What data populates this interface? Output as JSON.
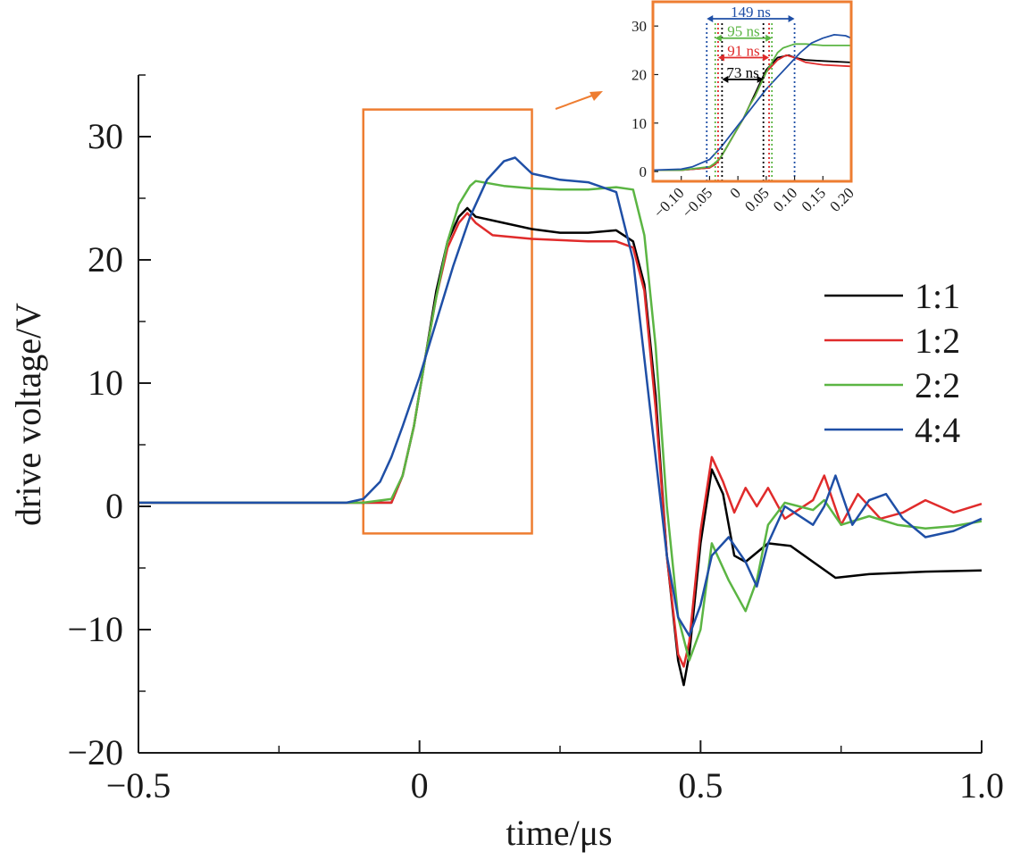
{
  "chart_data": [
    {
      "type": "line",
      "xlabel": "time/μs",
      "ylabel": "drive voltage/V",
      "xlim": [
        -0.5,
        1.0
      ],
      "ylim": [
        -20,
        35
      ],
      "xticks": [
        -0.5,
        0,
        0.5,
        1.0
      ],
      "xtick_labels": [
        "−0.5",
        "0",
        "0.5",
        "1.0"
      ],
      "yticks": [
        -20,
        -10,
        0,
        10,
        20,
        30
      ],
      "ytick_labels": [
        "−20",
        "−10",
        "0",
        "10",
        "20",
        "30"
      ],
      "grid": false,
      "legend_position": "right",
      "zoom_box": {
        "x0": -0.1,
        "x1": 0.2,
        "y0": -2.2,
        "y1": 32.2
      },
      "series": [
        {
          "name": "1:1",
          "color": "#000000",
          "x": [
            -0.5,
            -0.1,
            -0.05,
            -0.03,
            -0.01,
            0.01,
            0.03,
            0.05,
            0.07,
            0.085,
            0.1,
            0.15,
            0.2,
            0.25,
            0.3,
            0.35,
            0.38,
            0.4,
            0.42,
            0.44,
            0.46,
            0.47,
            0.48,
            0.5,
            0.52,
            0.54,
            0.56,
            0.58,
            0.62,
            0.66,
            0.7,
            0.74,
            0.8,
            0.9,
            1.0
          ],
          "y": [
            0.3,
            0.3,
            0.3,
            2.5,
            6.5,
            12,
            17.5,
            21.5,
            23.5,
            24.2,
            23.5,
            23,
            22.5,
            22.2,
            22.2,
            22.4,
            21.5,
            18,
            9,
            -4,
            -12.5,
            -14.5,
            -12,
            -3,
            3,
            1,
            -4,
            -4.5,
            -3,
            -3.2,
            -4.5,
            -5.8,
            -5.5,
            -5.3,
            -5.2
          ]
        },
        {
          "name": "1:2",
          "color": "#e02b2b",
          "x": [
            -0.5,
            -0.1,
            -0.05,
            -0.03,
            -0.01,
            0.01,
            0.03,
            0.05,
            0.07,
            0.085,
            0.1,
            0.13,
            0.2,
            0.25,
            0.3,
            0.35,
            0.38,
            0.4,
            0.42,
            0.44,
            0.46,
            0.47,
            0.48,
            0.5,
            0.52,
            0.54,
            0.56,
            0.58,
            0.6,
            0.62,
            0.65,
            0.7,
            0.72,
            0.75,
            0.78,
            0.82,
            0.86,
            0.9,
            0.95,
            1.0
          ],
          "y": [
            0.3,
            0.3,
            0.3,
            2.5,
            6.5,
            12,
            17,
            21,
            23,
            23.8,
            23,
            22,
            21.7,
            21.6,
            21.5,
            21.5,
            21,
            17.5,
            8,
            -4,
            -12,
            -13,
            -11,
            -2,
            4,
            2,
            -0.5,
            1.5,
            0,
            1.5,
            -1,
            0.5,
            2.5,
            -1.5,
            1,
            -1,
            -0.5,
            0.5,
            -0.5,
            0.2
          ]
        },
        {
          "name": "2:2",
          "color": "#5bb543",
          "x": [
            -0.5,
            -0.1,
            -0.05,
            -0.03,
            -0.01,
            0.01,
            0.03,
            0.05,
            0.07,
            0.09,
            0.1,
            0.15,
            0.2,
            0.25,
            0.3,
            0.35,
            0.38,
            0.4,
            0.42,
            0.44,
            0.46,
            0.48,
            0.5,
            0.52,
            0.55,
            0.58,
            0.6,
            0.62,
            0.65,
            0.7,
            0.72,
            0.75,
            0.8,
            0.85,
            0.9,
            0.95,
            1.0
          ],
          "y": [
            0.3,
            0.3,
            0.6,
            2.5,
            6.5,
            12,
            17,
            21.5,
            24.5,
            26,
            26.4,
            26,
            25.8,
            25.7,
            25.7,
            25.9,
            25.7,
            22,
            13,
            0,
            -9,
            -12.5,
            -10,
            -3,
            -6,
            -8.5,
            -6,
            -1.5,
            0.3,
            -0.3,
            0.5,
            -1.5,
            -0.8,
            -1.5,
            -1.8,
            -1.6,
            -1.2
          ]
        },
        {
          "name": "4:4",
          "color": "#1f4fa6",
          "x": [
            -0.5,
            -0.13,
            -0.1,
            -0.07,
            -0.05,
            -0.03,
            0,
            0.03,
            0.06,
            0.09,
            0.12,
            0.15,
            0.17,
            0.2,
            0.25,
            0.3,
            0.35,
            0.38,
            0.4,
            0.42,
            0.44,
            0.46,
            0.48,
            0.5,
            0.52,
            0.55,
            0.58,
            0.6,
            0.62,
            0.65,
            0.7,
            0.72,
            0.74,
            0.77,
            0.8,
            0.83,
            0.86,
            0.9,
            0.95,
            1.0
          ],
          "y": [
            0.3,
            0.3,
            0.6,
            2,
            4,
            6.5,
            10.5,
            15,
            19.5,
            23.5,
            26.5,
            28,
            28.3,
            27,
            26.5,
            26.3,
            25.5,
            20,
            12,
            4,
            -4,
            -9,
            -10.5,
            -8,
            -4,
            -2.5,
            -4.5,
            -6.5,
            -3,
            0,
            -1.5,
            0,
            2.5,
            -1.5,
            0.5,
            1,
            -1,
            -2.5,
            -2,
            -1
          ]
        }
      ]
    },
    {
      "type": "line",
      "xlim": [
        -0.15,
        0.2
      ],
      "ylim": [
        -2,
        35
      ],
      "xticks": [
        -0.1,
        -0.05,
        0,
        0.05,
        0.1,
        0.15,
        0.2
      ],
      "xtick_labels": [
        "−0.10",
        "−0.05",
        "0",
        "0.05",
        "0.10",
        "0.15",
        "0.20"
      ],
      "yticks": [
        0,
        10,
        20,
        30
      ],
      "ytick_labels": [
        "0",
        "10",
        "20",
        "30"
      ],
      "grid": false,
      "frame_color": "#ee7d31",
      "annotations": [
        {
          "text": "149 ns",
          "color": "#1f4fa6",
          "x_start": -0.055,
          "x_end": 0.1,
          "y": 31.5
        },
        {
          "text": "95 ns",
          "color": "#5bb543",
          "x_start": -0.04,
          "x_end": 0.06,
          "y": 27.5
        },
        {
          "text": "91 ns",
          "color": "#e02b2b",
          "x_start": -0.035,
          "x_end": 0.055,
          "y": 23.5
        },
        {
          "text": "73 ns",
          "color": "#000000",
          "x_start": -0.028,
          "x_end": 0.045,
          "y": 19
        }
      ],
      "markers": [
        {
          "x": -0.055,
          "color": "#1f4fa6"
        },
        {
          "x": 0.1,
          "color": "#1f4fa6"
        },
        {
          "x": -0.04,
          "color": "#5bb543"
        },
        {
          "x": 0.06,
          "color": "#5bb543"
        },
        {
          "x": -0.035,
          "color": "#e02b2b"
        },
        {
          "x": 0.055,
          "color": "#e02b2b"
        },
        {
          "x": -0.028,
          "color": "#000000"
        },
        {
          "x": 0.045,
          "color": "#000000"
        }
      ],
      "series": [
        {
          "name": "1:1",
          "color": "#000000",
          "x": [
            -0.15,
            -0.1,
            -0.05,
            -0.04,
            -0.03,
            -0.02,
            -0.01,
            0,
            0.01,
            0.02,
            0.03,
            0.04,
            0.05,
            0.07,
            0.09,
            0.1,
            0.12,
            0.15,
            0.2
          ],
          "y": [
            0.3,
            0.3,
            0.8,
            1.5,
            3,
            5,
            7,
            9,
            11,
            13.5,
            16,
            18.5,
            21,
            23.5,
            24,
            23.5,
            23,
            22.8,
            22.5
          ]
        },
        {
          "name": "1:2",
          "color": "#e02b2b",
          "x": [
            -0.15,
            -0.1,
            -0.05,
            -0.04,
            -0.03,
            -0.02,
            -0.01,
            0,
            0.01,
            0.02,
            0.03,
            0.04,
            0.05,
            0.07,
            0.085,
            0.1,
            0.12,
            0.15,
            0.2
          ],
          "y": [
            0.3,
            0.3,
            0.8,
            1.5,
            3,
            5,
            7,
            9,
            11,
            13.5,
            15.5,
            18,
            20.5,
            23,
            24,
            23.5,
            22.5,
            22,
            21.7
          ]
        },
        {
          "name": "2:2",
          "color": "#5bb543",
          "x": [
            -0.15,
            -0.1,
            -0.05,
            -0.04,
            -0.03,
            -0.02,
            -0.01,
            0,
            0.01,
            0.02,
            0.03,
            0.04,
            0.05,
            0.06,
            0.07,
            0.08,
            0.1,
            0.12,
            0.15,
            0.2
          ],
          "y": [
            0.3,
            0.3,
            1,
            1.8,
            3,
            5,
            7,
            9,
            11,
            13.5,
            15.5,
            18,
            20.5,
            22.5,
            24.5,
            25.5,
            26.3,
            26.3,
            26,
            26
          ]
        },
        {
          "name": "4:4",
          "color": "#1f4fa6",
          "x": [
            -0.15,
            -0.1,
            -0.08,
            -0.05,
            -0.03,
            -0.01,
            0,
            0.01,
            0.03,
            0.05,
            0.07,
            0.09,
            0.11,
            0.13,
            0.15,
            0.17,
            0.19,
            0.2
          ],
          "y": [
            0.3,
            0.5,
            1,
            2.5,
            5,
            8,
            9.5,
            11,
            14,
            17,
            19.5,
            22,
            24.5,
            26.5,
            27.5,
            28.2,
            28,
            27.5
          ]
        }
      ]
    }
  ],
  "legend": {
    "items": [
      {
        "label": "1:1",
        "color": "#000000"
      },
      {
        "label": "1:2",
        "color": "#e02b2b"
      },
      {
        "label": "2:2",
        "color": "#5bb543"
      },
      {
        "label": "4:4",
        "color": "#1f4fa6"
      }
    ]
  },
  "colors": {
    "zoom_frame": "#ee7d31",
    "axis": "#1a1a1a"
  }
}
